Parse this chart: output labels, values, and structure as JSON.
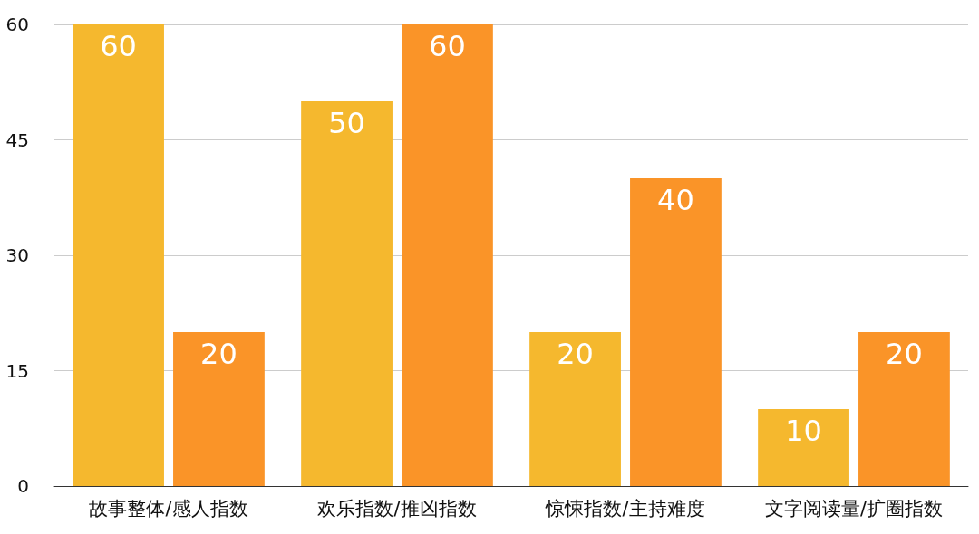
{
  "chart_data": {
    "type": "bar",
    "categories": [
      "故事整体/感人指数",
      "欢乐指数/推凶指数",
      "惊悚指数/主持难度",
      "文字阅读量/扩圈指数"
    ],
    "series": [
      {
        "color": "#f5b82e",
        "values": [
          60,
          50,
          20,
          10
        ]
      },
      {
        "color": "#fa9428",
        "values": [
          20,
          60,
          40,
          20
        ]
      }
    ],
    "ylim": [
      0,
      60
    ],
    "yticks": [
      0,
      15,
      30,
      45,
      60
    ],
    "grid": "y",
    "data_labels": true
  }
}
